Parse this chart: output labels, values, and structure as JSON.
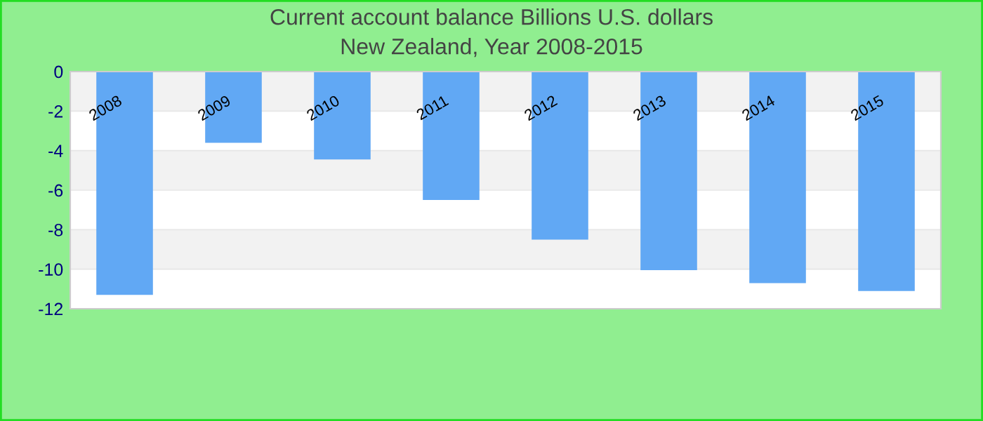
{
  "chart_data": {
    "type": "bar",
    "title": "Current account balance Billions U.S. dollars",
    "subtitle": "New Zealand, Year 2008-2015",
    "categories": [
      "2008",
      "2009",
      "2010",
      "2011",
      "2012",
      "2013",
      "2014",
      "2015"
    ],
    "values": [
      -11.3,
      -3.6,
      -4.45,
      -6.5,
      -8.5,
      -10.05,
      -10.7,
      -11.1
    ],
    "color": "#61a8f4",
    "ylim": [
      -12,
      0
    ],
    "yticks": [
      -12,
      -10,
      -8,
      -6,
      -4,
      -2,
      0
    ],
    "grid": "y"
  }
}
